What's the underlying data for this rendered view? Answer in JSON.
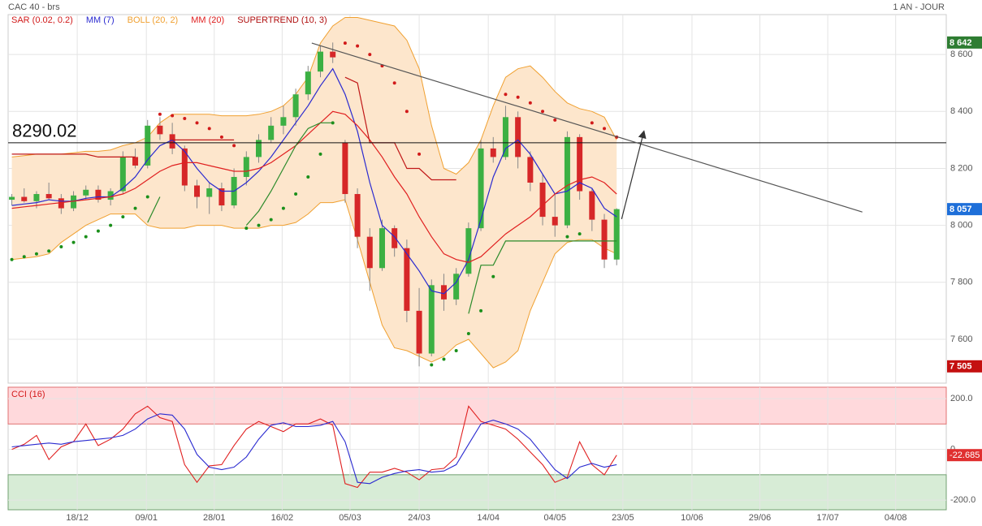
{
  "chart_data": [
    {
      "type": "candlestick",
      "title": "CAC 40 - brs",
      "subtitle": "1 AN - JOUR",
      "xlim": [
        -0.3,
        75.7
      ],
      "ylim": [
        7446,
        8740
      ],
      "yticks": [
        {
          "value": 7600,
          "label": "7 600"
        },
        {
          "value": 7800,
          "label": "7 800"
        },
        {
          "value": 8000,
          "label": "8 000"
        },
        {
          "value": 8200,
          "label": "8 200"
        },
        {
          "value": 8400,
          "label": "8 400"
        },
        {
          "value": 8600,
          "label": "8 600"
        }
      ],
      "grid": true,
      "up_color": "#3cb043",
      "down_color": "#d62728",
      "open": [
        8090,
        8100,
        8085,
        8110,
        8095,
        8060,
        8105,
        8125,
        8090,
        8120,
        8240,
        8210,
        8350,
        8320,
        8270,
        8140,
        8100,
        8130,
        8070,
        8170,
        8240,
        8300,
        8350,
        8380,
        8460,
        8540,
        8610,
        8290,
        8110,
        7960,
        7850,
        7990,
        7920,
        7700,
        7550,
        7790,
        7740,
        7830,
        7990,
        8270,
        8240,
        8380,
        8240,
        8150,
        8030,
        8000,
        8310,
        8120,
        8020,
        7880
      ],
      "high": [
        8110,
        8130,
        8120,
        8150,
        8110,
        8120,
        8140,
        8140,
        8130,
        8260,
        8270,
        8370,
        8380,
        8360,
        8280,
        8160,
        8150,
        8150,
        8200,
        8260,
        8320,
        8380,
        8420,
        8480,
        8560,
        8630,
        8642,
        8300,
        8130,
        7990,
        8020,
        8000,
        7950,
        7780,
        7810,
        7830,
        7850,
        8010,
        8300,
        8310,
        8420,
        8400,
        8260,
        8180,
        8110,
        8330,
        8320,
        8130,
        8040,
        8060
      ],
      "low": [
        8070,
        8080,
        8060,
        8090,
        8040,
        8050,
        8090,
        8080,
        8070,
        8110,
        8200,
        8200,
        8300,
        8250,
        8120,
        8060,
        8040,
        8050,
        8060,
        8140,
        8220,
        8290,
        8320,
        8350,
        8440,
        8520,
        8570,
        8080,
        7920,
        7770,
        7840,
        7890,
        7660,
        7505,
        7540,
        7700,
        7720,
        7820,
        7980,
        8220,
        8230,
        8200,
        8120,
        8000,
        7960,
        7990,
        8090,
        7980,
        7850,
        7860
      ],
      "close": [
        8100,
        8085,
        8110,
        8095,
        8060,
        8105,
        8125,
        8090,
        8120,
        8240,
        8210,
        8350,
        8320,
        8270,
        8140,
        8100,
        8130,
        8070,
        8170,
        8240,
        8300,
        8350,
        8380,
        8460,
        8540,
        8610,
        8590,
        8110,
        7960,
        7850,
        7990,
        7920,
        7700,
        7550,
        7790,
        7740,
        7830,
        7990,
        8270,
        8240,
        8380,
        8240,
        8150,
        8030,
        8000,
        8310,
        8120,
        8020,
        7880,
        8057
      ],
      "indicators": [
        {
          "name": "SAR (0.02, 0.2)",
          "style": "dots",
          "color": "#d11a1a",
          "colors": {
            "up": "#1a8f1a",
            "down": "#d11a1a"
          },
          "values": [
            7880,
            7890,
            7900,
            7910,
            7925,
            7940,
            7960,
            7980,
            8000,
            8030,
            8060,
            8100,
            8390,
            8385,
            8375,
            8360,
            8340,
            8310,
            8280,
            7990,
            8000,
            8020,
            8060,
            8110,
            8170,
            8250,
            8360,
            8640,
            8630,
            8600,
            8560,
            8500,
            8400,
            8250,
            7510,
            7530,
            7560,
            7620,
            7700,
            7820,
            8460,
            8450,
            8430,
            8400,
            8370,
            7960,
            7970,
            8360,
            8340,
            8310
          ]
        },
        {
          "name": "MM (7)",
          "style": "line",
          "color": "#2a2ad0",
          "values": [
            8070,
            8075,
            8080,
            8090,
            8085,
            8085,
            8095,
            8100,
            8100,
            8130,
            8170,
            8230,
            8280,
            8300,
            8260,
            8200,
            8150,
            8120,
            8120,
            8150,
            8190,
            8240,
            8300,
            8360,
            8420,
            8490,
            8550,
            8460,
            8330,
            8150,
            8000,
            7960,
            7900,
            7840,
            7770,
            7760,
            7800,
            7880,
            8020,
            8170,
            8270,
            8300,
            8250,
            8180,
            8110,
            8120,
            8150,
            8130,
            8060,
            8030
          ]
        },
        {
          "name": "BOLL (20, 2)",
          "style": "band",
          "color": "#f0a030",
          "fill": "#fde6cc",
          "upper": [
            8240,
            8245,
            8250,
            8250,
            8250,
            8255,
            8260,
            8260,
            8265,
            8280,
            8290,
            8310,
            8360,
            8390,
            8390,
            8390,
            8390,
            8385,
            8385,
            8385,
            8390,
            8400,
            8420,
            8460,
            8520,
            8640,
            8700,
            8730,
            8730,
            8720,
            8710,
            8700,
            8650,
            8550,
            8350,
            8200,
            8180,
            8220,
            8300,
            8420,
            8520,
            8550,
            8560,
            8520,
            8470,
            8430,
            8410,
            8400,
            8380,
            8300
          ],
          "lower": [
            7880,
            7885,
            7890,
            7900,
            7940,
            7970,
            8000,
            8020,
            8040,
            8040,
            8040,
            8000,
            7990,
            7990,
            7990,
            8000,
            8000,
            8000,
            7990,
            7990,
            7990,
            8000,
            8000,
            8010,
            8040,
            8080,
            8080,
            8090,
            7950,
            7800,
            7650,
            7570,
            7560,
            7540,
            7520,
            7540,
            7580,
            7600,
            7550,
            7500,
            7520,
            7560,
            7700,
            7800,
            7900,
            7940,
            7950,
            7950,
            7920,
            7900
          ]
        },
        {
          "name": "MM (20)",
          "style": "line",
          "color": "#e02020",
          "values": [
            8060,
            8065,
            8070,
            8075,
            8080,
            8085,
            8090,
            8095,
            8100,
            8110,
            8130,
            8160,
            8190,
            8210,
            8220,
            8220,
            8210,
            8200,
            8190,
            8190,
            8200,
            8220,
            8250,
            8280,
            8320,
            8360,
            8400,
            8390,
            8350,
            8300,
            8240,
            8170,
            8110,
            8030,
            7960,
            7900,
            7880,
            7870,
            7890,
            7930,
            7970,
            8000,
            8030,
            8070,
            8110,
            8140,
            8160,
            8170,
            8150,
            8110
          ]
        },
        {
          "name": "SUPERTREND (10, 3)",
          "style": "split",
          "color": "#b01010",
          "colors": {
            "up": "#2a8a2a",
            "down": "#c01818"
          },
          "up": [
            null,
            null,
            null,
            null,
            null,
            null,
            null,
            null,
            null,
            null,
            null,
            8010,
            8100,
            null,
            null,
            null,
            null,
            null,
            null,
            8000,
            8050,
            8120,
            8200,
            8280,
            8340,
            8360,
            8360,
            null,
            null,
            null,
            null,
            null,
            null,
            null,
            null,
            null,
            null,
            7690,
            7860,
            7860,
            7945,
            7945,
            7945,
            7945,
            7945,
            7945,
            7945,
            7945,
            7945,
            7945
          ],
          "down": [
            8250,
            8250,
            8250,
            8250,
            8250,
            8250,
            8250,
            8240,
            8240,
            8240,
            8240,
            null,
            null,
            8300,
            8300,
            8300,
            8300,
            8300,
            8300,
            null,
            null,
            null,
            null,
            null,
            null,
            null,
            null,
            8520,
            8500,
            8290,
            8290,
            8290,
            8200,
            8200,
            8160,
            8160,
            8160,
            null,
            null,
            null,
            null,
            null,
            null,
            null,
            null,
            null,
            null,
            null,
            null,
            null
          ]
        }
      ],
      "hline": 8290.02,
      "trendline": {
        "x": [
          24.3,
          68.9
        ],
        "y": [
          8640,
          8047
        ],
        "color": "#555555"
      },
      "arrow": {
        "x": [
          49.4,
          51.2
        ],
        "y": [
          8022,
          8329
        ],
        "color": "#333333"
      },
      "badges": [
        {
          "value": 8642,
          "label": "8 642",
          "color": "#2e7d32"
        },
        {
          "value": 8057,
          "label": "8 057",
          "color": "#1e6fd9"
        },
        {
          "value": 7505,
          "label": "7 505",
          "color": "#c41010"
        }
      ]
    },
    {
      "type": "line",
      "title": "CCI (16)",
      "xlim": [
        -0.3,
        75.7
      ],
      "ylim": [
        -238,
        245
      ],
      "xticks": [
        {
          "value": 5.3,
          "label": "18/12"
        },
        {
          "value": 10.9,
          "label": "09/01"
        },
        {
          "value": 16.4,
          "label": "28/01"
        },
        {
          "value": 21.9,
          "label": "16/02"
        },
        {
          "value": 27.4,
          "label": "05/03"
        },
        {
          "value": 33.0,
          "label": "24/03"
        },
        {
          "value": 38.6,
          "label": "14/04"
        },
        {
          "value": 44.0,
          "label": "04/05"
        },
        {
          "value": 49.5,
          "label": "23/05"
        },
        {
          "value": 55.1,
          "label": "10/06"
        },
        {
          "value": 60.6,
          "label": "29/06"
        },
        {
          "value": 66.1,
          "label": "17/07"
        },
        {
          "value": 71.6,
          "label": "04/08"
        }
      ],
      "yticks": [
        {
          "value": -200,
          "label": "-200.0"
        },
        0,
        {
          "value": 200,
          "label": "200.0"
        }
      ],
      "bands": [
        {
          "from": 100,
          "color": "#ffd9dc"
        },
        {
          "to": -100,
          "color": "#d7ecd6"
        }
      ],
      "series": [
        {
          "color": "#e02020",
          "values": [
            0,
            20,
            55,
            -40,
            10,
            30,
            100,
            15,
            40,
            80,
            140,
            170,
            125,
            110,
            -60,
            -130,
            -65,
            -60,
            15,
            80,
            110,
            90,
            70,
            100,
            100,
            120,
            95,
            -135,
            -150,
            -90,
            -90,
            -75,
            -90,
            -120,
            -80,
            -75,
            -30,
            170,
            110,
            95,
            80,
            40,
            -10,
            -60,
            -130,
            -110,
            30,
            -60,
            -100,
            -22.685
          ]
        },
        {
          "color": "#2a2ad0",
          "values": [
            10,
            15,
            20,
            25,
            20,
            30,
            35,
            40,
            45,
            55,
            80,
            120,
            140,
            135,
            80,
            -20,
            -70,
            -80,
            -70,
            -30,
            40,
            95,
            105,
            90,
            90,
            95,
            110,
            30,
            -130,
            -135,
            -110,
            -95,
            -85,
            -80,
            -90,
            -85,
            -60,
            20,
            100,
            115,
            100,
            80,
            40,
            -20,
            -80,
            -115,
            -70,
            -55,
            -70,
            -60
          ]
        }
      ],
      "last_badge_color": "#e03030"
    }
  ]
}
